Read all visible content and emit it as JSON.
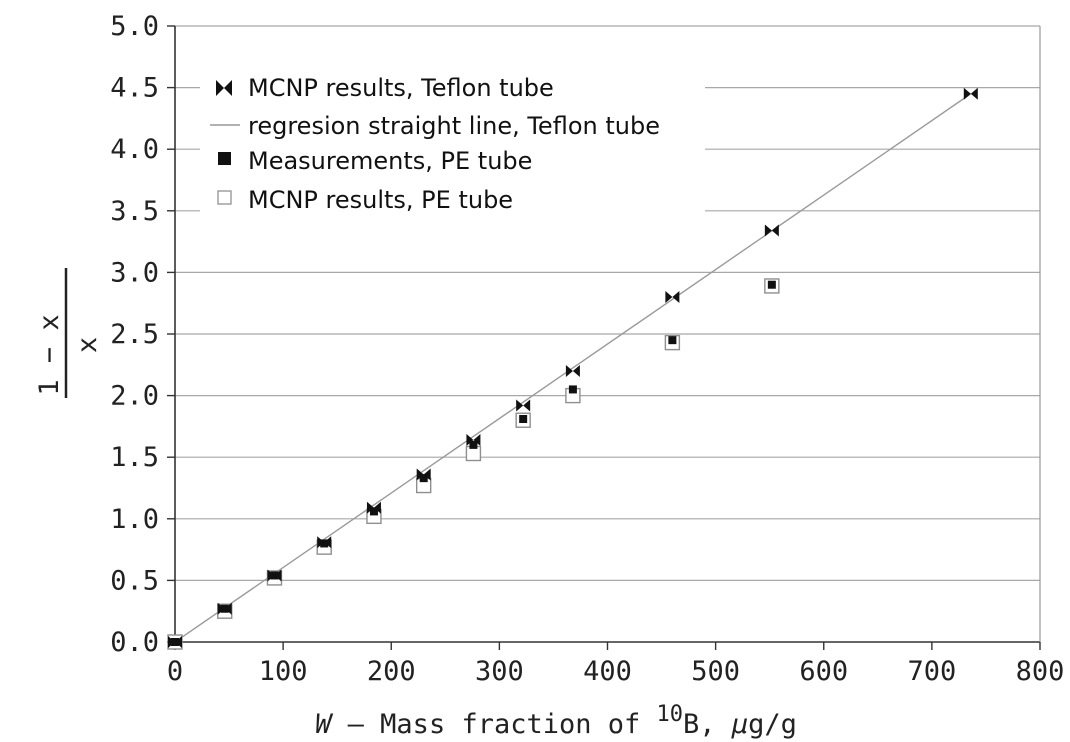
{
  "chart_data": {
    "type": "scatter",
    "xlim": [
      0,
      800
    ],
    "ylim": [
      0,
      5
    ],
    "x_ticks": [
      "0",
      "100",
      "200",
      "300",
      "400",
      "500",
      "600",
      "700",
      "800"
    ],
    "y_ticks": [
      "0.0",
      "0.5",
      "1.0",
      "1.5",
      "2.0",
      "2.5",
      "3.0",
      "3.5",
      "4.0",
      "4.5",
      "5.0"
    ],
    "grid": "horizontal",
    "legend_position": "top-left",
    "xlabel": {
      "var": "W",
      "text": " — Mass fraction of ",
      "isotope_sup": "10",
      "isotope": "B",
      "unit_prefix": ", ",
      "unit_mu": "μ",
      "unit_rest": "g/g"
    },
    "ylabel": {
      "numerator": "1 − x",
      "denominator": "x"
    },
    "series": [
      {
        "name": "MCNP results, Teflon tube",
        "marker": "bowtie",
        "x": [
          0,
          46,
          92,
          138,
          184,
          230,
          276,
          322,
          368,
          460,
          552,
          736
        ],
        "y": [
          0.0,
          0.27,
          0.54,
          0.81,
          1.09,
          1.36,
          1.64,
          1.92,
          2.2,
          2.8,
          3.34,
          4.45
        ]
      },
      {
        "name": "regresion straight line, Teflon tube",
        "marker": "line",
        "x": [
          0,
          736
        ],
        "y": [
          0.0,
          4.45
        ]
      },
      {
        "name": "Measurements, PE tube",
        "marker": "filled-square",
        "x": [
          0,
          46,
          92,
          138,
          184,
          230,
          276,
          322,
          368,
          460,
          552
        ],
        "y": [
          0.0,
          0.27,
          0.54,
          0.8,
          1.06,
          1.33,
          1.6,
          1.81,
          2.05,
          2.45,
          2.9
        ]
      },
      {
        "name": "MCNP results, PE tube",
        "marker": "open-square",
        "x": [
          0,
          46,
          92,
          138,
          184,
          230,
          276,
          322,
          368,
          460,
          552
        ],
        "y": [
          0.0,
          0.25,
          0.52,
          0.77,
          1.02,
          1.27,
          1.53,
          1.8,
          2.0,
          2.43,
          2.89
        ]
      }
    ]
  }
}
